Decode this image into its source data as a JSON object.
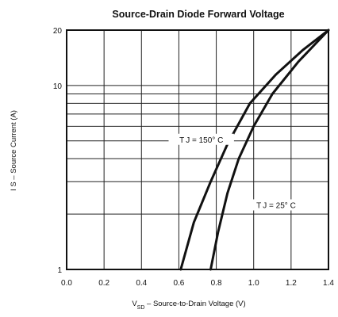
{
  "chart_data": {
    "type": "line",
    "title": "Source-Drain Diode Forward Voltage",
    "xlabel": {
      "main": "V",
      "sub": "SD",
      "rest": " –  Source-to-Drain Voltage (V)"
    },
    "ylabel": "I S  –  Source Current (A)",
    "x_scale": "linear",
    "y_scale": "log",
    "xlim": [
      0.0,
      1.4
    ],
    "ylim": [
      1,
      20
    ],
    "x_ticks": [
      "0.0",
      "0.2",
      "0.4",
      "0.6",
      "0.8",
      "1.0",
      "1.2",
      "1.4"
    ],
    "x_tick_values": [
      0.0,
      0.2,
      0.4,
      0.6,
      0.8,
      1.0,
      1.2,
      1.4
    ],
    "y_ticks": [
      "1",
      "10",
      "20"
    ],
    "y_tick_values": [
      1,
      10,
      20
    ],
    "grid": true,
    "grid_y_values": [
      1,
      2,
      3,
      4,
      5,
      6,
      7,
      8,
      9,
      10,
      20
    ],
    "series": [
      {
        "label": "T J = 150° C",
        "x": [
          0.61,
          0.68,
          0.77,
          0.86,
          0.98,
          1.12,
          1.26,
          1.4
        ],
        "y": [
          1.0,
          1.8,
          3.0,
          4.8,
          8.0,
          11.5,
          15.5,
          20.0
        ]
      },
      {
        "label": "T J = 25° C",
        "x": [
          0.77,
          0.81,
          0.86,
          0.92,
          1.0,
          1.1,
          1.24,
          1.4
        ],
        "y": [
          1.0,
          1.6,
          2.6,
          4.0,
          6.0,
          9.0,
          13.5,
          20.0
        ]
      }
    ]
  }
}
